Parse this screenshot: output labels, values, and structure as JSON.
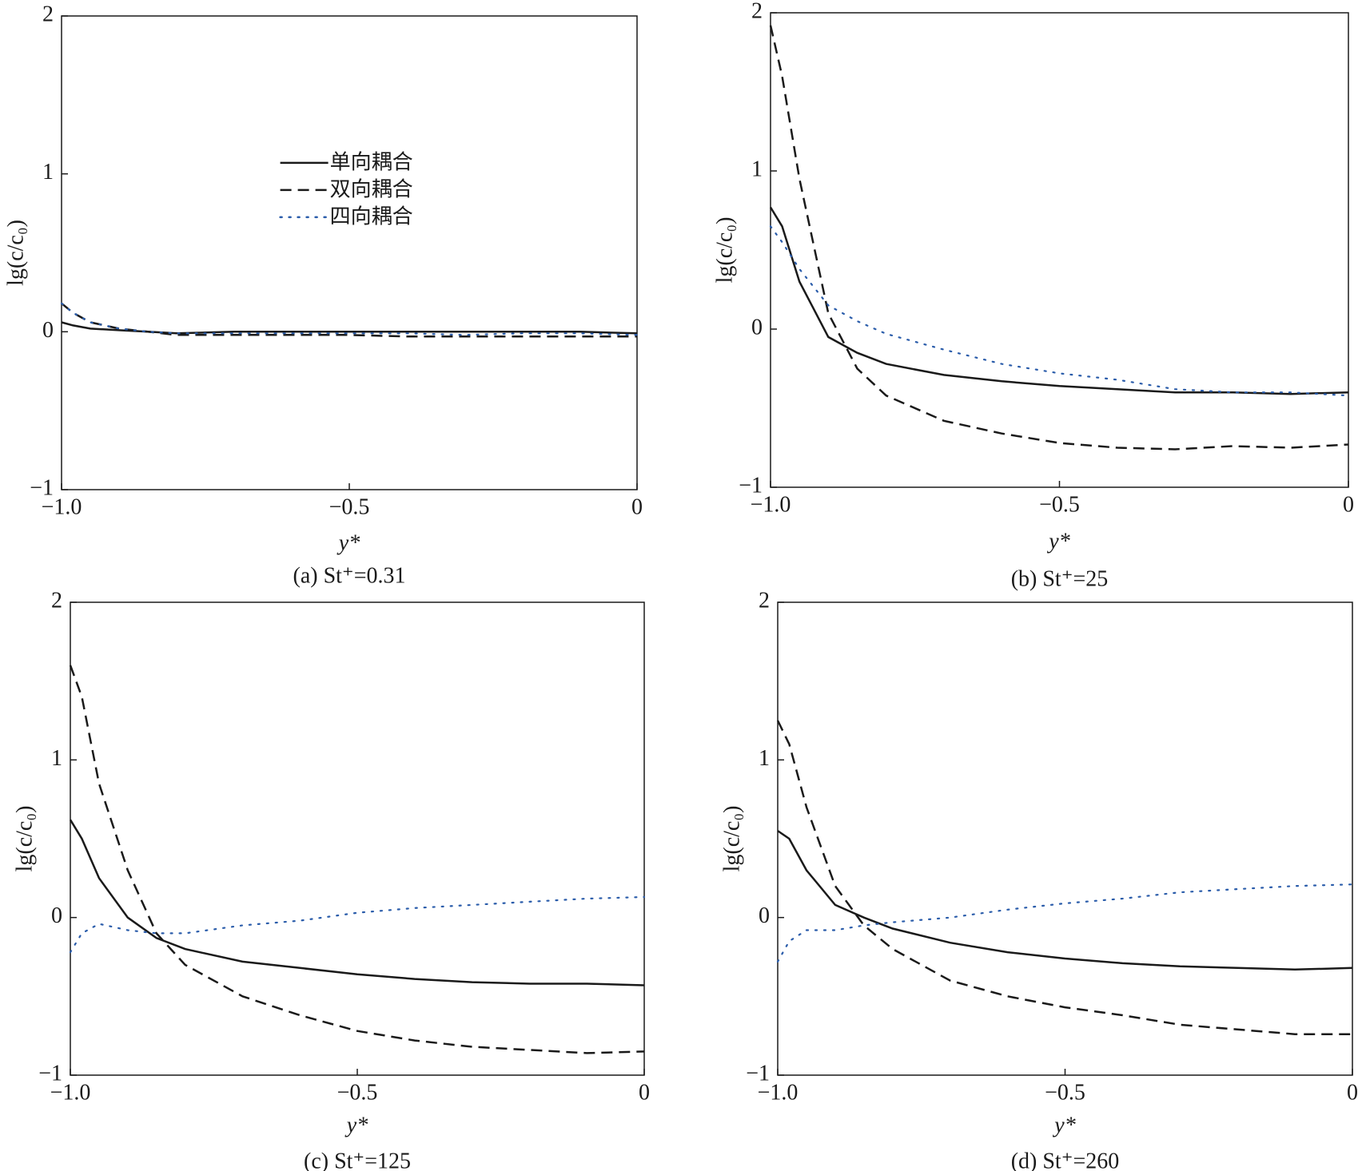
{
  "chart_data": [
    {
      "type": "line",
      "caption": "(a) St⁺=0.31",
      "xlabel": "y*",
      "ylabel": "lg(c/c₀)",
      "xlim": [
        -1.0,
        0
      ],
      "ylim": [
        -1,
        2
      ],
      "xticks": [
        {
          "value": -1.0,
          "label": "−1.0"
        },
        {
          "value": -0.5,
          "label": "−0.5"
        },
        0
      ],
      "yticks": [
        {
          "value": -1,
          "label": "−1"
        },
        0,
        1,
        2
      ],
      "legend": "center",
      "x": [
        -1.0,
        -0.98,
        -0.95,
        -0.9,
        -0.85,
        -0.8,
        -0.7,
        -0.6,
        -0.5,
        -0.4,
        -0.3,
        -0.2,
        -0.1,
        0
      ],
      "series": [
        {
          "name": "单向耦合",
          "color": "#1a1a1a",
          "style": "solid",
          "values": [
            0.06,
            0.04,
            0.02,
            0.01,
            0.0,
            -0.01,
            0.0,
            0.0,
            0.0,
            0.0,
            0.0,
            0.0,
            0.0,
            -0.01
          ]
        },
        {
          "name": "双向耦合",
          "color": "#1a1a1a",
          "style": "dashed",
          "values": [
            0.18,
            0.12,
            0.06,
            0.02,
            0.0,
            -0.02,
            -0.02,
            -0.02,
            -0.02,
            -0.03,
            -0.03,
            -0.03,
            -0.03,
            -0.03
          ]
        },
        {
          "name": "四向耦合",
          "color": "#2a5caa",
          "style": "dotted",
          "values": [
            0.18,
            0.12,
            0.06,
            0.02,
            0.0,
            -0.01,
            -0.01,
            -0.01,
            -0.01,
            -0.01,
            -0.02,
            -0.01,
            -0.01,
            -0.02
          ]
        }
      ]
    },
    {
      "type": "line",
      "caption": "(b) St⁺=25",
      "xlabel": "y*",
      "ylabel": "lg(c/c₀)",
      "xlim": [
        -1.0,
        0
      ],
      "ylim": [
        -1,
        2
      ],
      "xticks": [
        {
          "value": -1.0,
          "label": "−1.0"
        },
        {
          "value": -0.5,
          "label": "−0.5"
        },
        0
      ],
      "yticks": [
        {
          "value": -1,
          "label": "−1"
        },
        0,
        1,
        2
      ],
      "x": [
        -1.0,
        -0.98,
        -0.95,
        -0.9,
        -0.85,
        -0.8,
        -0.7,
        -0.6,
        -0.5,
        -0.4,
        -0.3,
        -0.2,
        -0.1,
        0
      ],
      "series": [
        {
          "color": "#1a1a1a",
          "style": "solid",
          "values": [
            0.77,
            0.65,
            0.3,
            -0.05,
            -0.15,
            -0.22,
            -0.29,
            -0.33,
            -0.36,
            -0.38,
            -0.4,
            -0.4,
            -0.41,
            -0.4
          ]
        },
        {
          "color": "#1a1a1a",
          "style": "dashed",
          "values": [
            1.92,
            1.6,
            0.95,
            0.1,
            -0.25,
            -0.42,
            -0.58,
            -0.66,
            -0.72,
            -0.75,
            -0.76,
            -0.74,
            -0.75,
            -0.73
          ]
        },
        {
          "color": "#2a5caa",
          "style": "dotted",
          "values": [
            0.65,
            0.55,
            0.38,
            0.15,
            0.05,
            -0.03,
            -0.13,
            -0.22,
            -0.28,
            -0.32,
            -0.38,
            -0.4,
            -0.4,
            -0.42
          ]
        }
      ]
    },
    {
      "type": "line",
      "caption": "(c) St⁺=125",
      "xlabel": "y*",
      "ylabel": "lg(c/c₀)",
      "xlim": [
        -1.0,
        0
      ],
      "ylim": [
        -1,
        2
      ],
      "xticks": [
        {
          "value": -1.0,
          "label": "−1.0"
        },
        {
          "value": -0.5,
          "label": "−0.5"
        },
        0
      ],
      "yticks": [
        {
          "value": -1,
          "label": "−1"
        },
        0,
        1,
        2
      ],
      "x": [
        -1.0,
        -0.98,
        -0.95,
        -0.9,
        -0.85,
        -0.8,
        -0.7,
        -0.6,
        -0.5,
        -0.4,
        -0.3,
        -0.2,
        -0.1,
        0
      ],
      "series": [
        {
          "color": "#1a1a1a",
          "style": "solid",
          "values": [
            0.62,
            0.5,
            0.25,
            0.0,
            -0.13,
            -0.2,
            -0.28,
            -0.32,
            -0.36,
            -0.39,
            -0.41,
            -0.42,
            -0.42,
            -0.43
          ]
        },
        {
          "color": "#1a1a1a",
          "style": "dashed",
          "values": [
            1.6,
            1.4,
            0.85,
            0.3,
            -0.1,
            -0.3,
            -0.5,
            -0.62,
            -0.72,
            -0.78,
            -0.82,
            -0.84,
            -0.86,
            -0.85
          ]
        },
        {
          "color": "#2a5caa",
          "style": "dotted",
          "values": [
            -0.22,
            -0.1,
            -0.04,
            -0.08,
            -0.1,
            -0.1,
            -0.05,
            -0.02,
            0.03,
            0.06,
            0.08,
            0.1,
            0.12,
            0.13
          ]
        }
      ]
    },
    {
      "type": "line",
      "caption": "(d) St⁺=260",
      "xlabel": "y*",
      "ylabel": "lg(c/c₀)",
      "xlim": [
        -1.0,
        0
      ],
      "ylim": [
        -1,
        2
      ],
      "xticks": [
        {
          "value": -1.0,
          "label": "−1.0"
        },
        {
          "value": -0.5,
          "label": "−0.5"
        },
        0
      ],
      "yticks": [
        {
          "value": -1,
          "label": "−1"
        },
        0,
        1,
        2
      ],
      "x": [
        -1.0,
        -0.98,
        -0.95,
        -0.9,
        -0.85,
        -0.8,
        -0.7,
        -0.6,
        -0.5,
        -0.4,
        -0.3,
        -0.2,
        -0.1,
        0
      ],
      "series": [
        {
          "color": "#1a1a1a",
          "style": "solid",
          "values": [
            0.55,
            0.5,
            0.3,
            0.08,
            0.0,
            -0.07,
            -0.16,
            -0.22,
            -0.26,
            -0.29,
            -0.31,
            -0.32,
            -0.33,
            -0.32
          ]
        },
        {
          "color": "#1a1a1a",
          "style": "dashed",
          "values": [
            1.25,
            1.1,
            0.7,
            0.2,
            -0.05,
            -0.2,
            -0.4,
            -0.5,
            -0.57,
            -0.62,
            -0.68,
            -0.71,
            -0.74,
            -0.74
          ]
        },
        {
          "color": "#2a5caa",
          "style": "dotted",
          "values": [
            -0.28,
            -0.15,
            -0.08,
            -0.08,
            -0.05,
            -0.03,
            0.0,
            0.05,
            0.09,
            0.12,
            0.16,
            0.18,
            0.2,
            0.21
          ]
        }
      ]
    }
  ]
}
